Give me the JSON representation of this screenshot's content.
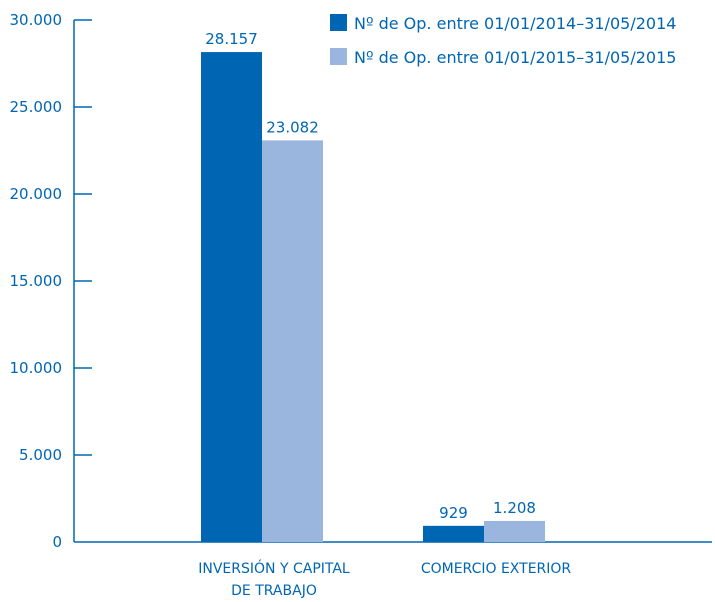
{
  "chart_data": {
    "type": "bar",
    "categories": [
      "INVERSIÓN Y CAPITAL DE TRABAJO",
      "COMERCIO EXTERIOR"
    ],
    "category_label_lines": [
      [
        "INVERSIÓN Y CAPITAL",
        "DE TRABAJO"
      ],
      [
        "COMERCIO EXTERIOR"
      ]
    ],
    "series": [
      {
        "name": "Nº de Op. entre 01/01/2014–31/05/2014",
        "values": [
          28157,
          929
        ],
        "value_labels": [
          "28.157",
          "929"
        ],
        "color": "#0066b3"
      },
      {
        "name": "Nº de Op. entre 01/01/2015–31/05/2015",
        "values": [
          23082,
          1208
        ],
        "value_labels": [
          "23.082",
          "1.208"
        ],
        "color": "#9bb6de"
      }
    ],
    "title": "",
    "xlabel": "",
    "ylabel": "",
    "ylim": [
      0,
      30000
    ],
    "yticks": [
      0,
      5000,
      10000,
      15000,
      20000,
      25000,
      30000
    ],
    "ytick_labels": [
      "0",
      "5.000",
      "10.000",
      "15.000",
      "20.000",
      "25.000",
      "30.000"
    ],
    "legend_position": "top-right",
    "grid": false,
    "colors": {
      "axis": "#0066b3",
      "text": "#0066b3"
    }
  }
}
